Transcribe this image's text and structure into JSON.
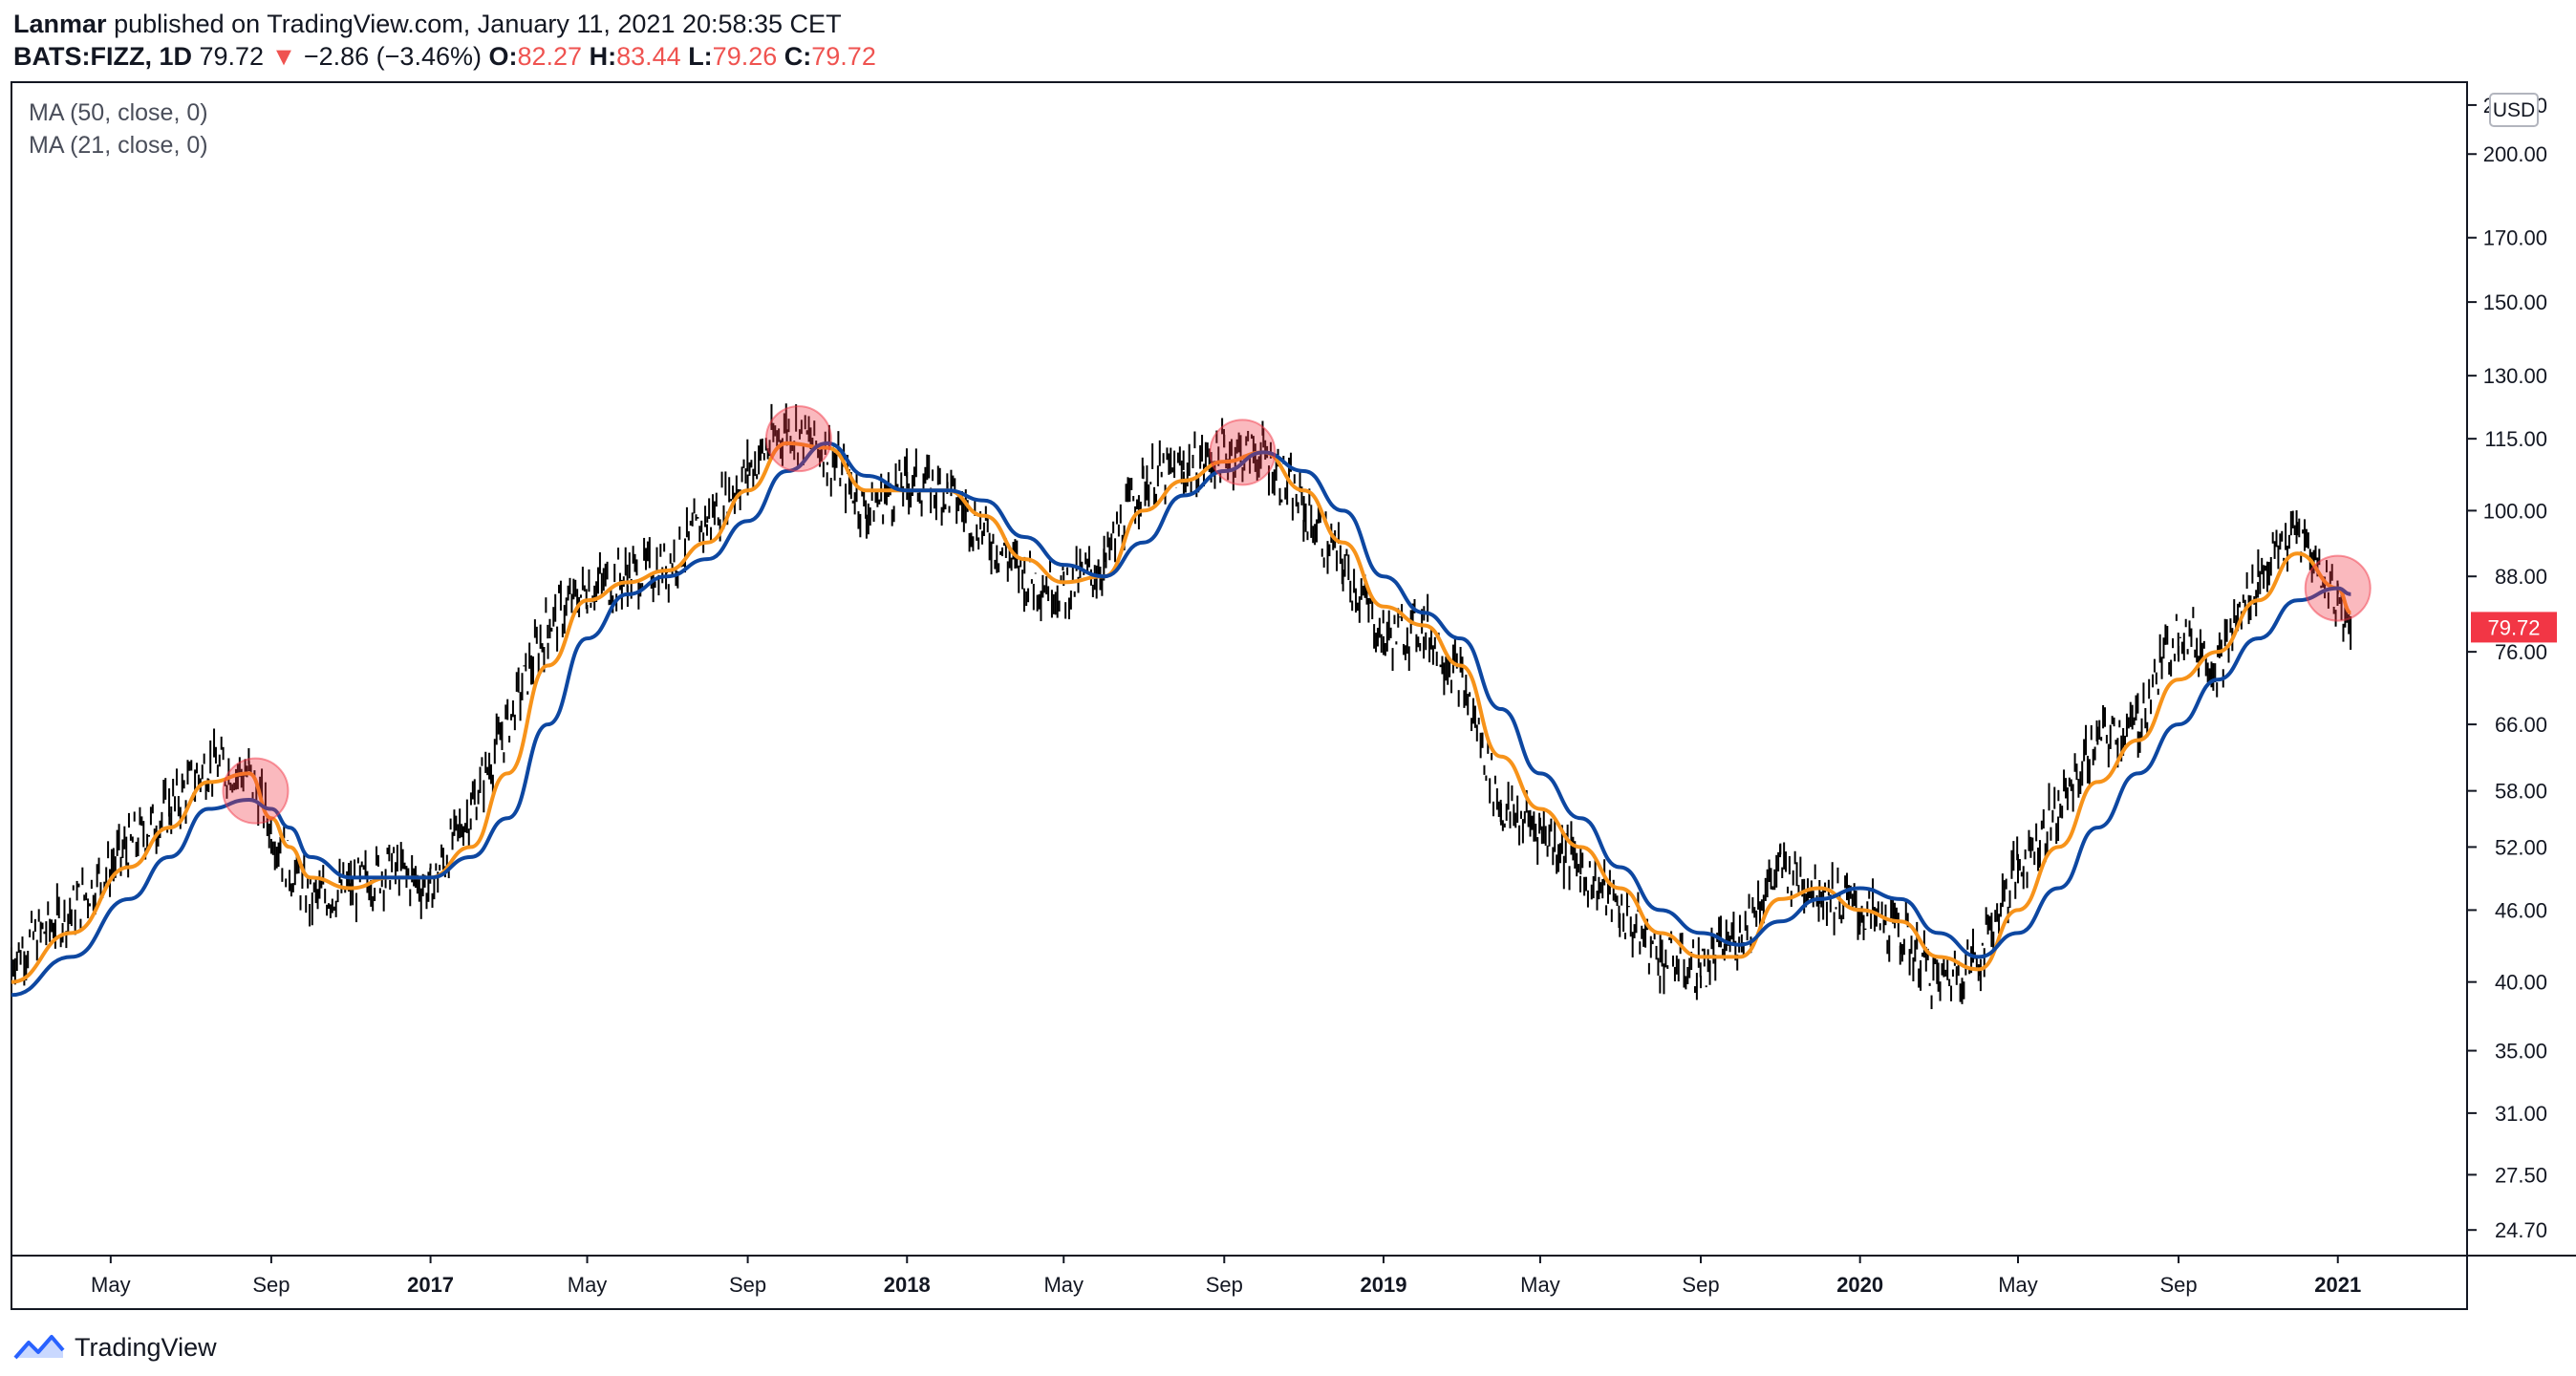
{
  "header": {
    "author": "Lanmar",
    "published_text": "published on TradingView.com, January 11, 2021 20:58:35 CET",
    "symbol": "BATS:FIZZ, 1D",
    "last": "79.72",
    "change_arrow": "▼",
    "change": "−2.86 (−3.46%)",
    "open_label": "O:",
    "open": "82.27",
    "high_label": "H:",
    "high": "83.44",
    "low_label": "L:",
    "low": "79.26",
    "close_label": "C:",
    "close": "79.72"
  },
  "legend": [
    {
      "label": "MA (50, close, 0)",
      "color": "#0d47a1"
    },
    {
      "label": "MA (21, close, 0)",
      "color": "#f7931a"
    }
  ],
  "price_axis": {
    "currency": "USD",
    "scale": "log",
    "ticks": [
      "220.00",
      "200.00",
      "170.00",
      "150.00",
      "130.00",
      "115.00",
      "100.00",
      "88.00",
      "76.00",
      "66.00",
      "58.00",
      "52.00",
      "46.00",
      "40.00",
      "35.00",
      "31.00",
      "27.50",
      "24.70"
    ],
    "last_price_label": "79.72",
    "last_price_color": "#f23645"
  },
  "time_axis": {
    "ticks": [
      "May",
      "Sep",
      "2017",
      "May",
      "Sep",
      "2018",
      "May",
      "Sep",
      "2019",
      "May",
      "Sep",
      "2020",
      "May",
      "Sep",
      "2021"
    ],
    "bold_ticks": [
      "2017",
      "2018",
      "2019",
      "2020",
      "2021"
    ]
  },
  "footer": {
    "brand": "TradingView"
  },
  "chart_data": {
    "type": "line",
    "symbol": "BATS:FIZZ",
    "interval": "1D",
    "y_scale": "log",
    "x": [
      "2016-02-15",
      "2016-04-01",
      "2016-05-15",
      "2016-06-15",
      "2016-07-15",
      "2016-08-15",
      "2016-09-01",
      "2016-09-15",
      "2016-10-01",
      "2016-11-01",
      "2016-12-01",
      "2017-01-01",
      "2017-02-01",
      "2017-03-01",
      "2017-04-01",
      "2017-05-01",
      "2017-06-01",
      "2017-07-01",
      "2017-08-01",
      "2017-09-01",
      "2017-10-01",
      "2017-11-01",
      "2017-12-01",
      "2018-01-01",
      "2018-02-01",
      "2018-03-01",
      "2018-04-01",
      "2018-05-01",
      "2018-06-01",
      "2018-07-01",
      "2018-08-01",
      "2018-09-01",
      "2018-10-01",
      "2018-11-01",
      "2018-12-01",
      "2019-01-01",
      "2019-02-01",
      "2019-03-01",
      "2019-04-01",
      "2019-05-01",
      "2019-06-01",
      "2019-07-01",
      "2019-08-01",
      "2019-09-01",
      "2019-10-01",
      "2019-11-01",
      "2019-12-01",
      "2020-01-01",
      "2020-02-01",
      "2020-03-01",
      "2020-04-01",
      "2020-05-01",
      "2020-06-01",
      "2020-07-01",
      "2020-08-01",
      "2020-09-01",
      "2020-10-01",
      "2020-11-01",
      "2020-12-01",
      "2021-01-01",
      "2021-01-11"
    ],
    "series": [
      {
        "name": "BATS:FIZZ",
        "color": "#000000",
        "values": [
          42,
          46,
          52,
          56,
          61,
          60,
          54,
          50,
          47,
          48,
          50,
          48,
          56,
          66,
          80,
          86,
          88,
          90,
          98,
          108,
          118,
          112,
          100,
          106,
          104,
          96,
          88,
          86,
          90,
          106,
          108,
          112,
          112,
          100,
          90,
          78,
          80,
          72,
          56,
          54,
          50,
          46,
          42,
          41,
          44,
          50,
          48,
          46,
          44,
          40,
          42,
          50,
          56,
          64,
          66,
          80,
          74,
          88,
          96,
          84,
          79.72
        ]
      },
      {
        "name": "MA (21, close, 0)",
        "color": "#f7931a",
        "values": [
          40,
          44,
          50,
          54,
          59,
          60,
          55,
          52,
          49,
          48,
          49,
          49,
          52,
          60,
          74,
          84,
          87,
          89,
          94,
          104,
          114,
          113,
          104,
          104,
          104,
          99,
          91,
          87,
          88,
          100,
          106,
          110,
          112,
          104,
          94,
          83,
          80,
          74,
          62,
          56,
          52,
          48,
          44,
          42,
          42,
          47,
          48,
          46,
          45,
          42,
          41,
          46,
          52,
          59,
          64,
          72,
          76,
          84,
          92,
          86,
          82
        ]
      },
      {
        "name": "MA (50, close, 0)",
        "color": "#0d47a1",
        "values": [
          39,
          42,
          47,
          51,
          56,
          57,
          56,
          54,
          51,
          49,
          49,
          49,
          51,
          55,
          66,
          78,
          85,
          88,
          91,
          98,
          108,
          114,
          107,
          104,
          104,
          102,
          95,
          90,
          88,
          94,
          103,
          108,
          112,
          108,
          100,
          88,
          82,
          78,
          68,
          60,
          55,
          50,
          46,
          44,
          43,
          45,
          47,
          48,
          47,
          44,
          42,
          44,
          48,
          54,
          60,
          66,
          72,
          78,
          84,
          86,
          85
        ]
      }
    ],
    "ma_cross_markers": [
      {
        "x": "2016-08-20",
        "y": 58
      },
      {
        "x": "2017-10-10",
        "y": 115
      },
      {
        "x": "2018-09-15",
        "y": 112
      },
      {
        "x": "2021-01-01",
        "y": 86
      }
    ],
    "ylim": [
      23.5,
      230
    ],
    "grid": false,
    "legend_position": "top-left"
  }
}
